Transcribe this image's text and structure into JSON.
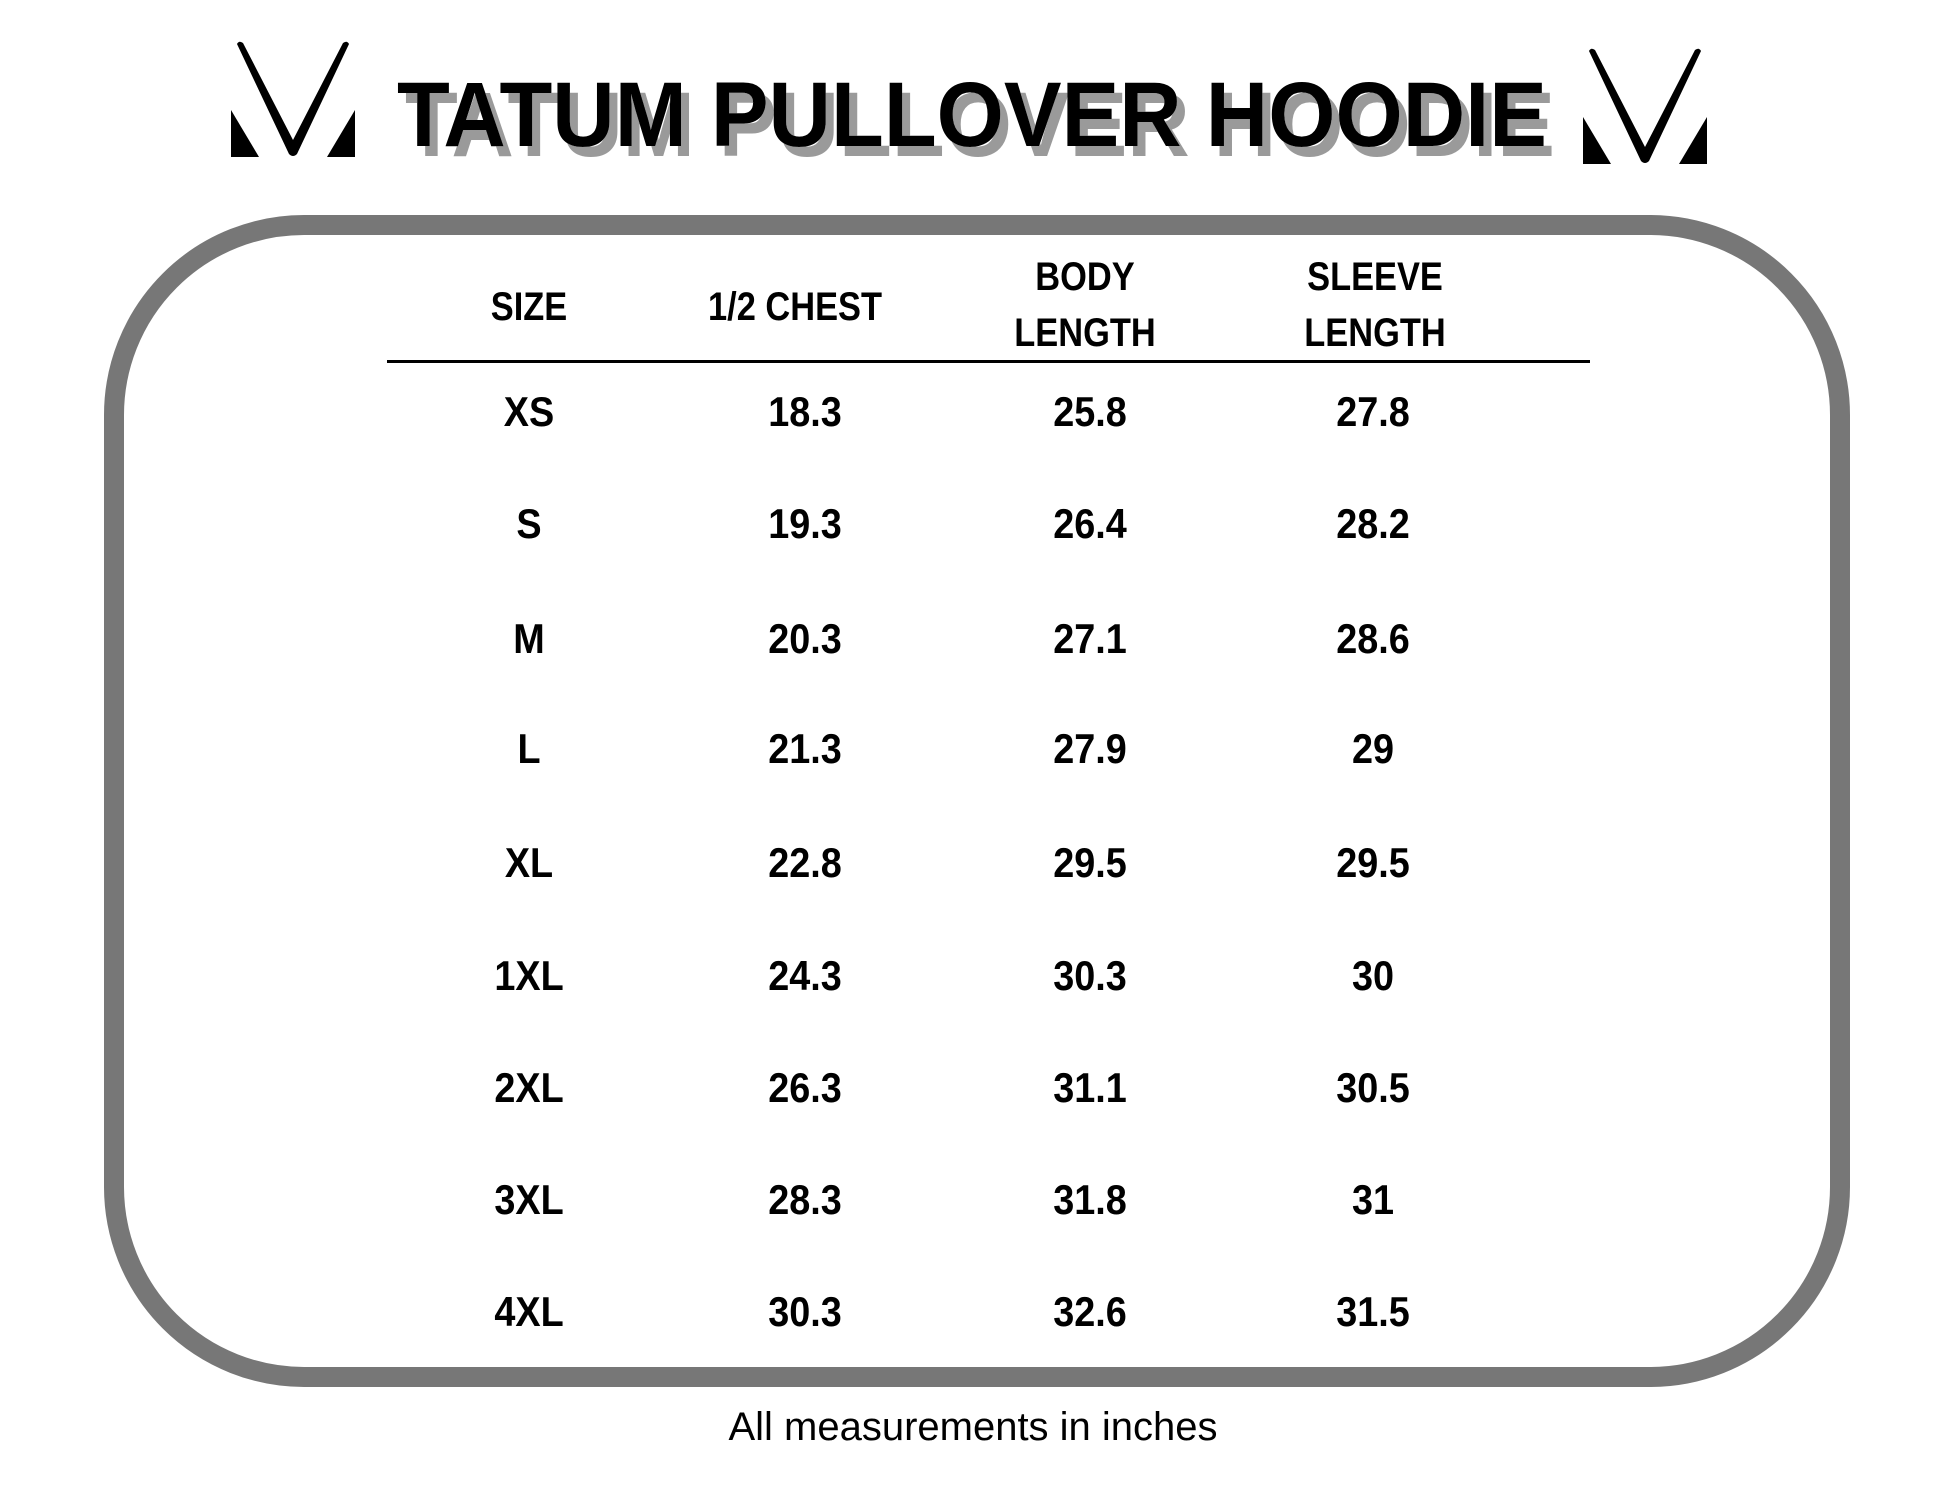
{
  "title": "TATUM PULLOVER HOODIE",
  "colors": {
    "frame": "#777777",
    "title_shadow": "#9a9a9a",
    "text": "#000000"
  },
  "logo": "mv-monogram-logo",
  "table": {
    "headers": [
      {
        "line1": "SIZE",
        "line2": ""
      },
      {
        "line1": "1/2 CHEST",
        "line2": ""
      },
      {
        "line1": "BODY",
        "line2": "LENGTH"
      },
      {
        "line1": "SLEEVE",
        "line2": "LENGTH"
      }
    ],
    "rows": [
      [
        "XS",
        "18.3",
        "25.8",
        "27.8"
      ],
      [
        "S",
        "19.3",
        "26.4",
        "28.2"
      ],
      [
        "M",
        "20.3",
        "27.1",
        "28.6"
      ],
      [
        "L",
        "21.3",
        "27.9",
        "29"
      ],
      [
        "XL",
        "22.8",
        "29.5",
        "29.5"
      ],
      [
        "1XL",
        "24.3",
        "30.3",
        "30"
      ],
      [
        "2XL",
        "26.3",
        "31.1",
        "30.5"
      ],
      [
        "3XL",
        "28.3",
        "31.8",
        "31"
      ],
      [
        "4XL",
        "30.3",
        "32.6",
        "31.5"
      ]
    ]
  },
  "footer": "All measurements in inches"
}
